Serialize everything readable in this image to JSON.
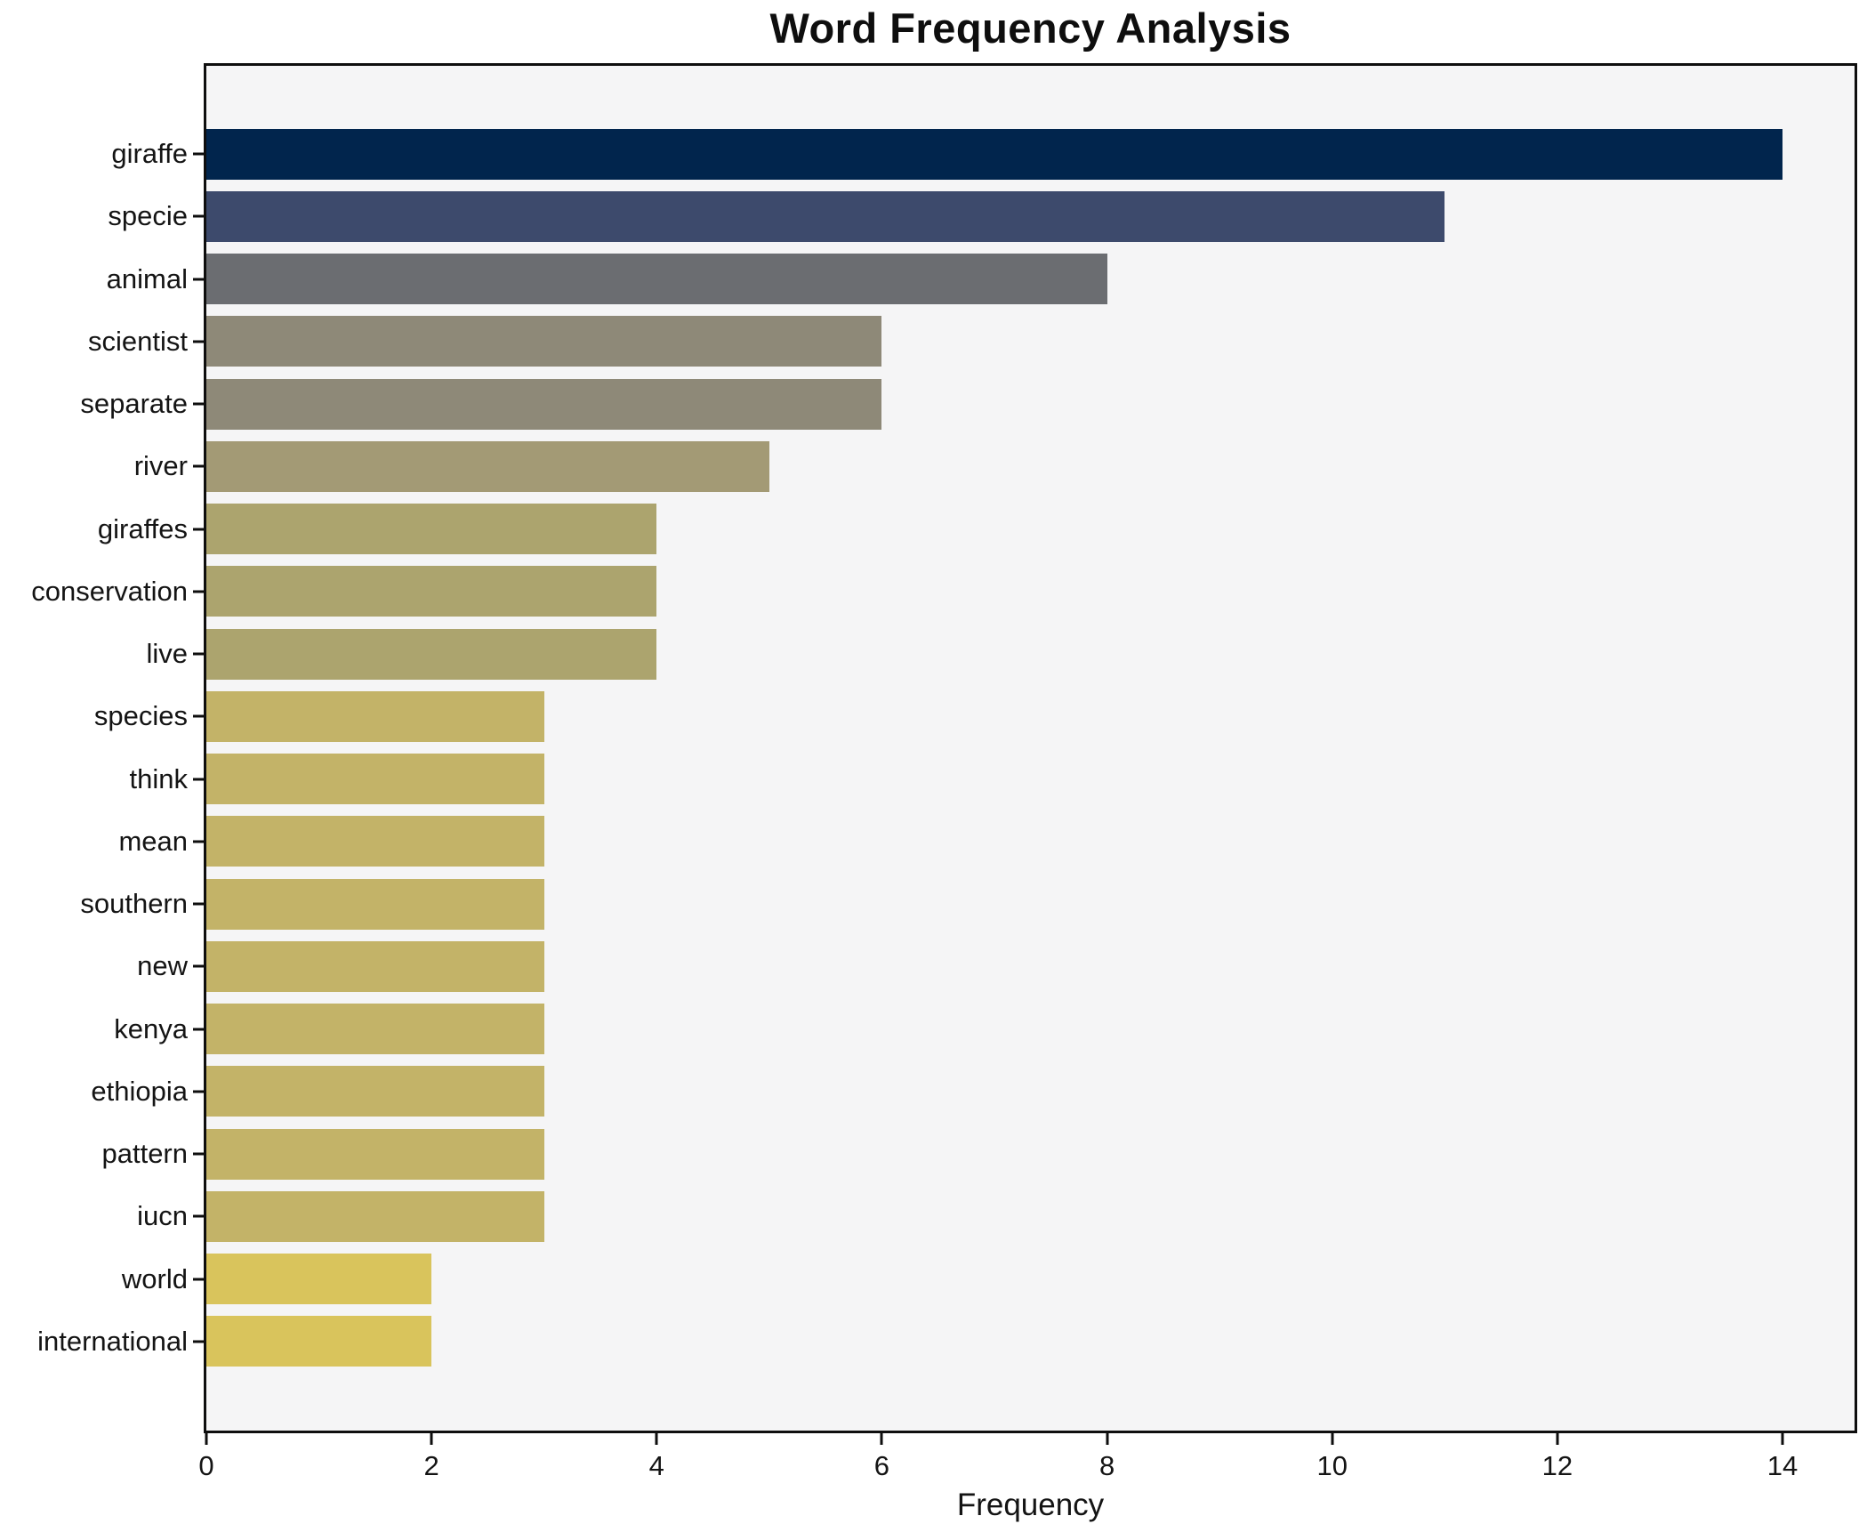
{
  "title": "Word Frequency Analysis",
  "xlabel": "Frequency",
  "chart_data": {
    "type": "bar",
    "orientation": "horizontal",
    "title": "Word Frequency Analysis",
    "xlabel": "Frequency",
    "ylabel": "",
    "categories": [
      "giraffe",
      "specie",
      "animal",
      "scientist",
      "separate",
      "river",
      "giraffes",
      "conservation",
      "live",
      "species",
      "think",
      "mean",
      "southern",
      "new",
      "kenya",
      "ethiopia",
      "pattern",
      "iucn",
      "world",
      "international"
    ],
    "values": [
      14,
      11,
      8,
      6,
      6,
      5,
      4,
      4,
      4,
      3,
      3,
      3,
      3,
      3,
      3,
      3,
      3,
      3,
      2,
      2
    ],
    "bar_colors": [
      "#01254d",
      "#3d4a6c",
      "#6b6d71",
      "#8e8978",
      "#8e8978",
      "#a39a75",
      "#aca46e",
      "#aca46e",
      "#aca46e",
      "#c3b368",
      "#c3b368",
      "#c3b368",
      "#c3b368",
      "#c3b368",
      "#c3b368",
      "#c3b368",
      "#c3b368",
      "#c3b368",
      "#d9c45c",
      "#d9c45c"
    ],
    "xlim": [
      0,
      14.64
    ],
    "xticks": [
      0,
      2,
      4,
      6,
      8,
      10,
      12,
      14
    ],
    "grid": false,
    "legend": "none",
    "colors": {
      "plot_background": "#f5f5f6",
      "figure_background": "#ffffff",
      "spine": "#0e0e0e",
      "text": "#141414"
    }
  }
}
